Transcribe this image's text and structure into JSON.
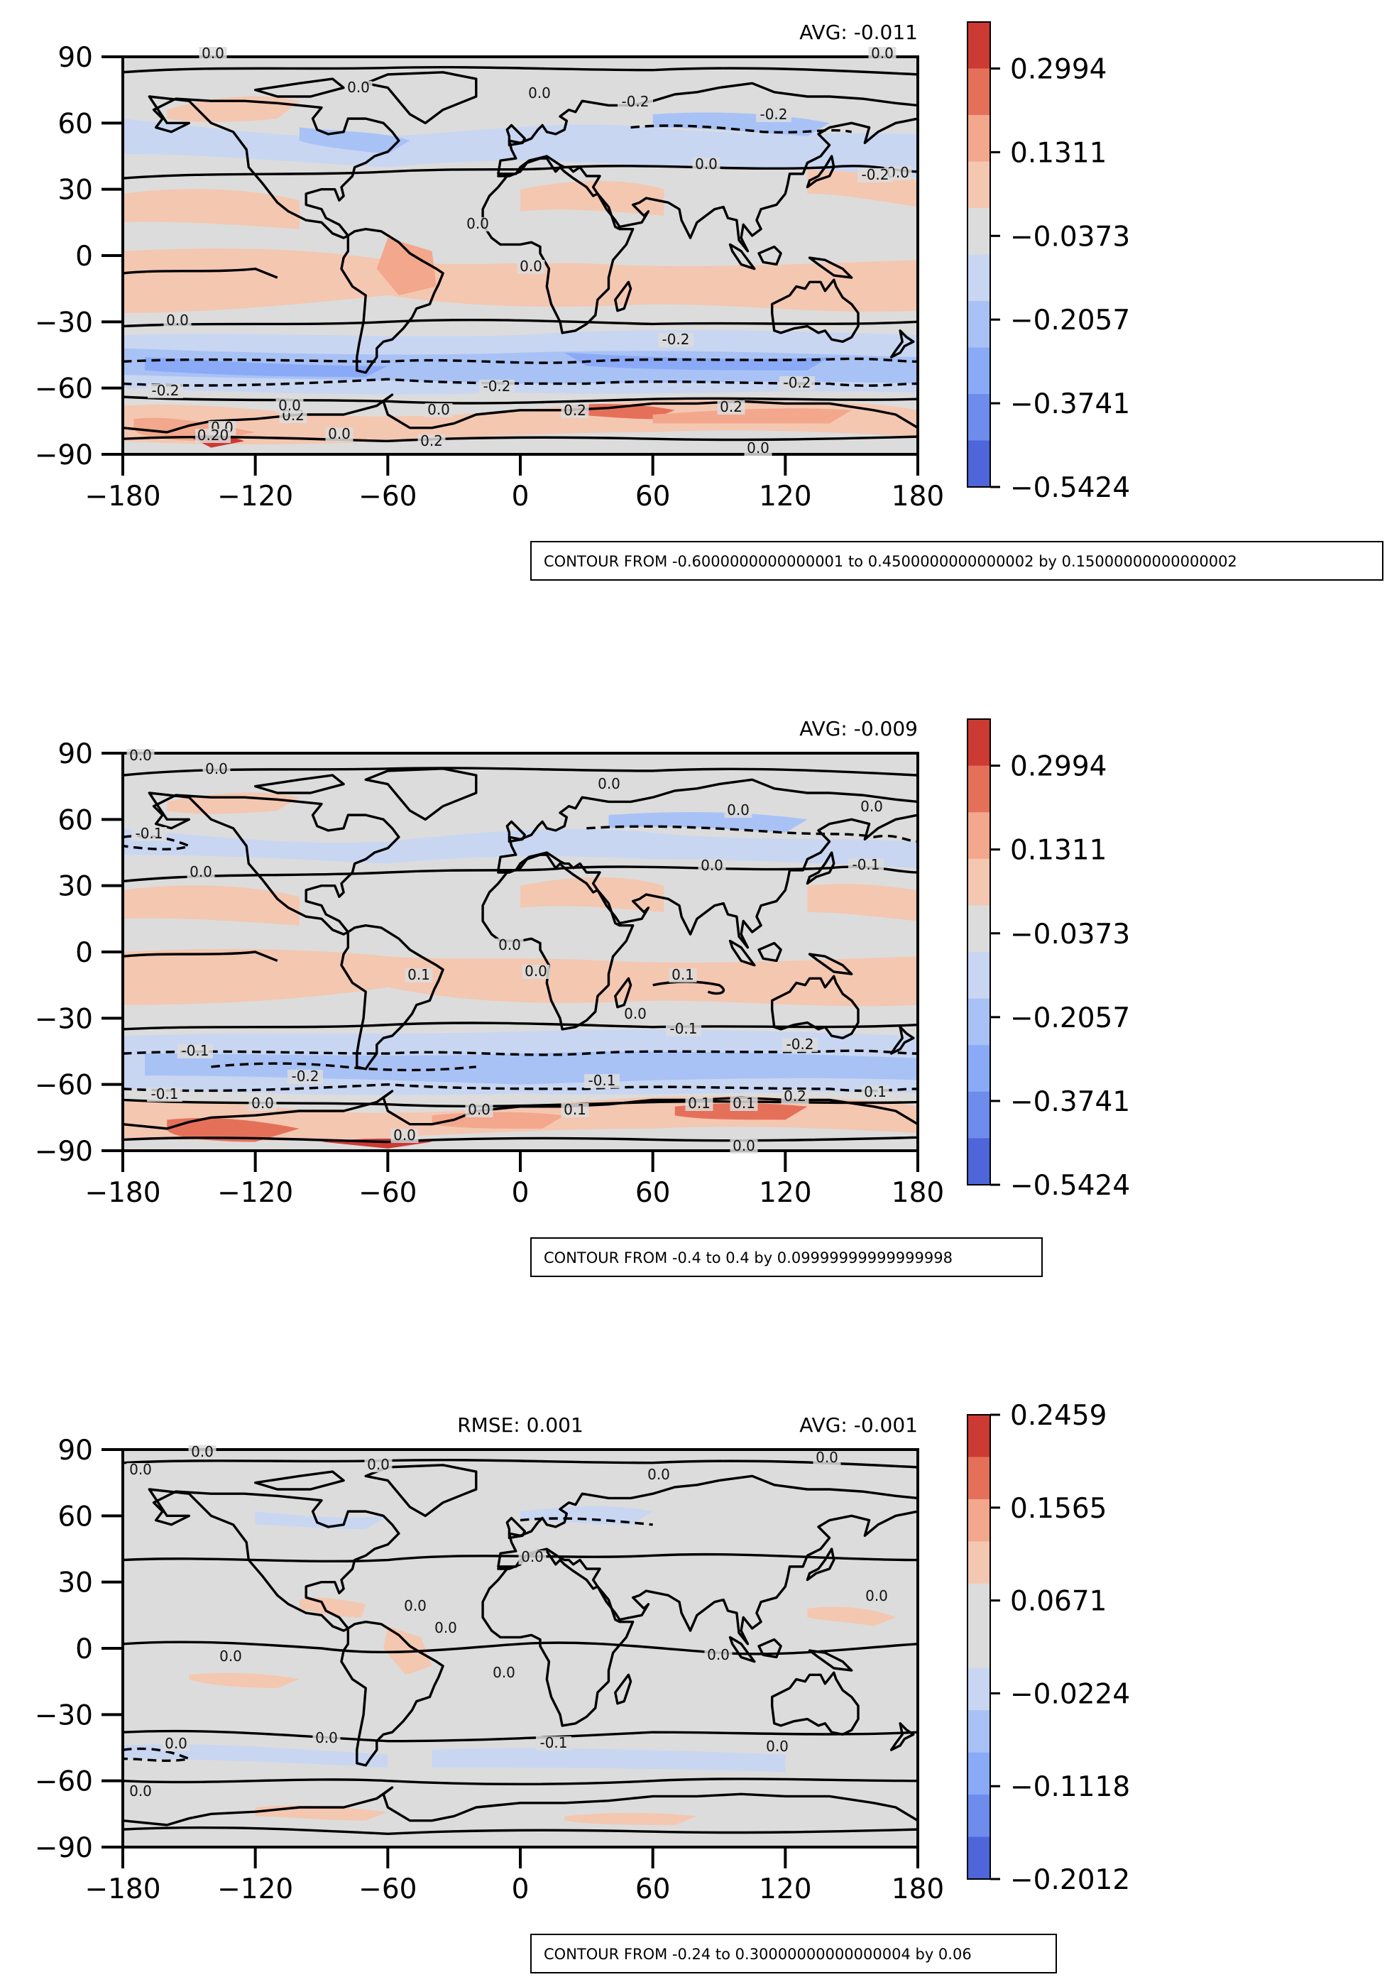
{
  "panels": [
    {
      "avg": "AVG: -0.011",
      "rmse": "",
      "colorbar": {
        "ticks": [
          "0.2994",
          "0.1311",
          "−0.0373",
          "−0.2057",
          "−0.3741",
          "−0.5424"
        ],
        "colors": [
          "#cd3a34",
          "#e5705a",
          "#f3a78c",
          "#f4c7b1",
          "#dcdcdc",
          "#c8d6f2",
          "#a9c2f5",
          "#8aaaf7",
          "#6d8cec",
          "#4e66d9"
        ]
      },
      "x_ticks": [
        "−180",
        "−120",
        "−60",
        "0",
        "60",
        "120",
        "180"
      ],
      "y_ticks": [
        "90",
        "60",
        "30",
        "0",
        "−30",
        "−60",
        "−90"
      ],
      "contour_note": "CONTOUR FROM -0.6000000000000001 to 0.4500000000000002 by 0.15000000000000002",
      "contour_labels": [
        "0.0",
        "0.0",
        "-0.2",
        "-0.2",
        "0.0",
        "0.0",
        "0.0",
        "0.0",
        "0.0",
        "-0.2",
        "0.0",
        "-0.2",
        "-0.2",
        "-0.2",
        "-0.2",
        "0.0",
        "0.2",
        "0.2",
        "0.2",
        "0.0",
        "0.20",
        "0.0",
        "0.0",
        "0.2",
        "0.0",
        "0.0"
      ]
    },
    {
      "avg": "AVG: -0.009",
      "rmse": "",
      "colorbar": {
        "ticks": [
          "0.2994",
          "0.1311",
          "−0.0373",
          "−0.2057",
          "−0.3741",
          "−0.5424"
        ],
        "colors": [
          "#cd3a34",
          "#e5705a",
          "#f3a78c",
          "#f4c7b1",
          "#dcdcdc",
          "#c8d6f2",
          "#a9c2f5",
          "#8aaaf7",
          "#6d8cec",
          "#4e66d9"
        ]
      },
      "x_ticks": [
        "−180",
        "−120",
        "−60",
        "0",
        "60",
        "120",
        "180"
      ],
      "y_ticks": [
        "90",
        "60",
        "30",
        "0",
        "−30",
        "−60",
        "−90"
      ],
      "contour_note": "CONTOUR FROM -0.4 to 0.4 by 0.09999999999999998",
      "contour_labels": [
        "0.0",
        "0.0",
        "-0.1",
        "0.0",
        "0.0",
        "0.0",
        "-0.1",
        "0.0",
        "0.0",
        "0.0",
        "0.0",
        "0.1",
        "0.1",
        "0.0",
        "-0.1",
        "-0.1",
        "-0.2",
        "-0.2",
        "-0.1",
        "-0.1",
        "0.0",
        "0.1",
        "0.1",
        "0.2",
        "0.1",
        "0.0",
        "0.1",
        "0.0",
        "0.0"
      ]
    },
    {
      "avg": "AVG: -0.001",
      "rmse": "RMSE: 0.001",
      "colorbar": {
        "ticks": [
          "0.2459",
          "0.1565",
          "0.0671",
          "−0.0224",
          "−0.1118",
          "−0.2012"
        ],
        "colors": [
          "#cd3a34",
          "#e5705a",
          "#f3a78c",
          "#f4c7b1",
          "#dcdcdc",
          "#dcdcdc",
          "#c8d6f2",
          "#a9c2f5",
          "#8aaaf7",
          "#6d8cec",
          "#4e66d9"
        ]
      },
      "x_ticks": [
        "−180",
        "−120",
        "−60",
        "0",
        "60",
        "120",
        "180"
      ],
      "y_ticks": [
        "90",
        "60",
        "30",
        "0",
        "−30",
        "−60",
        "−90"
      ],
      "contour_note": "CONTOUR FROM -0.24 to 0.30000000000000004 by 0.06",
      "contour_labels": [
        "0.0",
        "0.0",
        "0.0",
        "0.0",
        "0.0",
        "0.0",
        "0.0",
        "0.0",
        "0.0",
        "0.0",
        "0.0",
        "0.0",
        "-0.1",
        "0.0",
        "0.0",
        "0.0",
        "0.0"
      ]
    }
  ],
  "colors": {
    "neutral": "#dcdcdc",
    "warm_light": "#f4c7b1",
    "warm_mid": "#f3a78c",
    "warm_strong": "#e5705a",
    "warm_max": "#cd3a34",
    "cool_light": "#c8d6f2",
    "cool_mid": "#a9c2f5",
    "cool_strong": "#8aaaf7",
    "coastline": "#000000"
  }
}
